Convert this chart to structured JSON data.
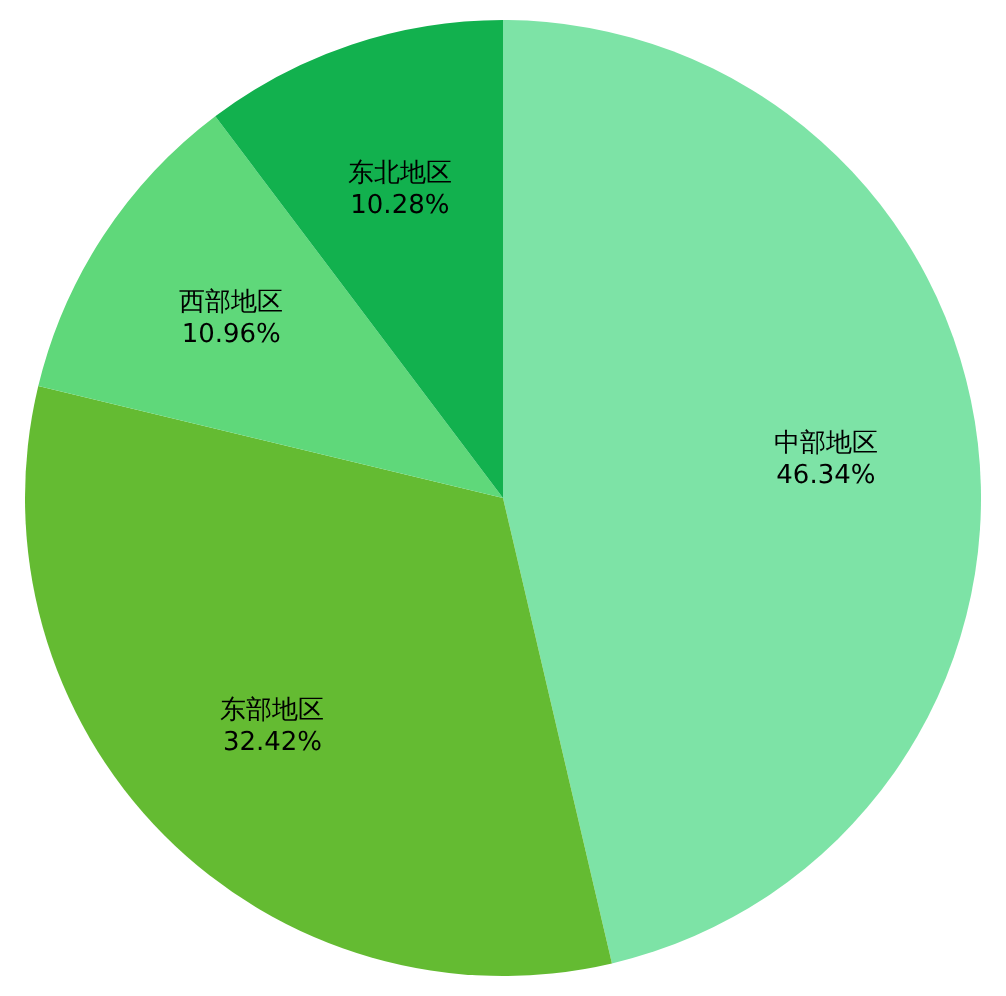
{
  "chart_data": {
    "type": "pie",
    "categories": [
      "中部地区",
      "东部地区",
      "西部地区",
      "东北地区"
    ],
    "values": [
      46.34,
      32.42,
      10.96,
      10.28
    ],
    "colors": [
      "#7de3a6",
      "#64bb32",
      "#5fd87a",
      "#12b14e"
    ],
    "value_labels": [
      "46.34%",
      "32.42%",
      "10.96%",
      "10.28%"
    ],
    "legend": false
  }
}
